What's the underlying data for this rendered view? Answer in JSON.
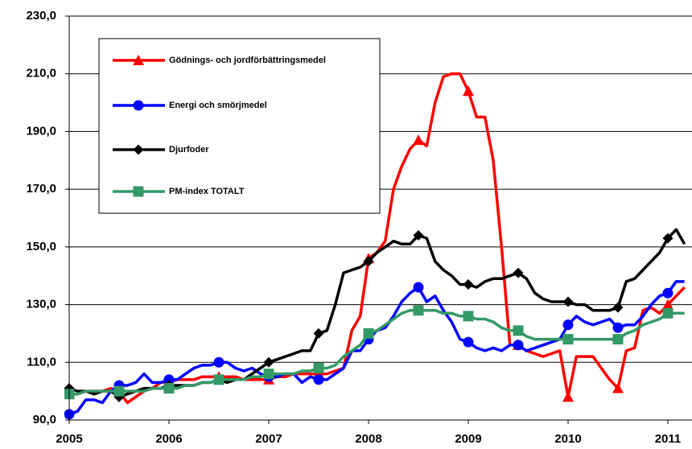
{
  "chart_data": {
    "type": "line",
    "categories": [
      "2005",
      null,
      null,
      null,
      null,
      null,
      null,
      null,
      null,
      null,
      null,
      null,
      "2006",
      null,
      null,
      null,
      null,
      null,
      null,
      null,
      null,
      null,
      null,
      null,
      "2007",
      null,
      null,
      null,
      null,
      null,
      null,
      null,
      null,
      null,
      null,
      null,
      "2008",
      null,
      null,
      null,
      null,
      null,
      null,
      null,
      null,
      null,
      null,
      null,
      "2009",
      null,
      null,
      null,
      null,
      null,
      null,
      null,
      null,
      null,
      null,
      null,
      "2010",
      null,
      null,
      null,
      null,
      null,
      null,
      null,
      null,
      null,
      null,
      null,
      "2011",
      null,
      null
    ],
    "series": [
      {
        "name": "Gödnings- och jordförbättringsmedel",
        "color": "#ff0000",
        "marker": "triangle",
        "values": [
          99,
          99,
          100,
          100,
          100,
          101,
          100,
          96,
          98,
          100,
          101,
          103,
          103,
          104,
          104,
          104,
          105,
          105,
          105,
          105,
          105,
          104,
          104,
          104,
          104,
          105,
          105,
          106,
          106,
          106,
          106,
          106,
          107,
          108,
          121,
          126,
          146,
          148,
          152,
          170,
          178,
          184,
          187,
          185,
          200,
          209,
          210,
          210,
          204,
          195,
          195,
          180,
          150,
          116,
          116,
          114,
          113,
          112,
          113,
          114,
          98,
          112,
          112,
          112,
          108,
          104,
          101,
          114,
          115,
          128,
          129,
          127,
          130,
          133,
          136
        ]
      },
      {
        "name": "Energi och smörjmedel",
        "color": "#0000ff",
        "marker": "circle",
        "values": [
          92,
          93,
          97,
          97,
          96,
          100,
          102,
          102,
          103,
          106,
          103,
          103,
          104,
          104,
          106,
          108,
          109,
          109,
          110,
          110,
          108,
          107,
          108,
          106,
          105,
          105,
          106,
          106,
          103,
          105,
          104,
          104,
          106,
          108,
          114,
          114,
          118,
          121,
          122,
          126,
          131,
          134,
          136,
          131,
          133,
          128,
          124,
          118,
          117,
          115,
          114,
          115,
          114,
          116,
          116,
          114,
          115,
          116,
          117,
          118,
          123,
          126,
          124,
          123,
          124,
          125,
          122,
          123,
          123,
          126,
          130,
          133,
          134,
          138,
          138
        ]
      },
      {
        "name": "Djurfoder",
        "color": "#000000",
        "marker": "diamond",
        "values": [
          101,
          100,
          100,
          99,
          100,
          100,
          98,
          99,
          100,
          101,
          101,
          101,
          102,
          102,
          102,
          102,
          103,
          103,
          104,
          103,
          104,
          104,
          106,
          108,
          110,
          111,
          112,
          113,
          114,
          114,
          120,
          121,
          130,
          141,
          142,
          143,
          145,
          148,
          150,
          152,
          151,
          151,
          154,
          153,
          145,
          142,
          140,
          137,
          137,
          136,
          138,
          139,
          139,
          140,
          141,
          139,
          134,
          132,
          131,
          131,
          131,
          130,
          130,
          128,
          128,
          128,
          129,
          138,
          139,
          142,
          145,
          148,
          153,
          156,
          151
        ]
      },
      {
        "name": "PM-index TOTALT",
        "color": "#339966",
        "marker": "square",
        "values": [
          99,
          99,
          100,
          100,
          100,
          100,
          100,
          100,
          100,
          100,
          101,
          101,
          101,
          101,
          102,
          102,
          103,
          103,
          104,
          104,
          104,
          104,
          105,
          105,
          106,
          106,
          106,
          106,
          107,
          107,
          108,
          108,
          109,
          112,
          114,
          116,
          120,
          121,
          123,
          125,
          127,
          128,
          128,
          128,
          128,
          127,
          127,
          126,
          126,
          125,
          125,
          124,
          122,
          121,
          121,
          119,
          118,
          118,
          118,
          118,
          118,
          118,
          118,
          118,
          118,
          118,
          118,
          120,
          121,
          123,
          124,
          125,
          127,
          127,
          127
        ]
      }
    ],
    "ylim": [
      90,
      230
    ],
    "yticks": [
      {
        "value": 90,
        "label": "90,0"
      },
      {
        "value": 110,
        "label": "110,0"
      },
      {
        "value": 130,
        "label": "130,0"
      },
      {
        "value": 150,
        "label": "150,0"
      },
      {
        "value": 170,
        "label": "170,0"
      },
      {
        "value": 190,
        "label": "190,0"
      },
      {
        "value": 210,
        "label": "210,0"
      },
      {
        "value": 230,
        "label": "230,0"
      }
    ],
    "grid": true
  }
}
